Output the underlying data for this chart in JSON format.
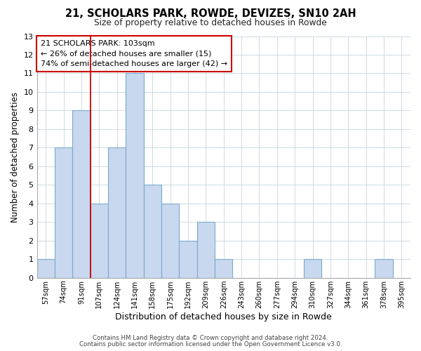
{
  "title": "21, SCHOLARS PARK, ROWDE, DEVIZES, SN10 2AH",
  "subtitle": "Size of property relative to detached houses in Rowde",
  "xlabel": "Distribution of detached houses by size in Rowde",
  "ylabel": "Number of detached properties",
  "bar_labels": [
    "57sqm",
    "74sqm",
    "91sqm",
    "107sqm",
    "124sqm",
    "141sqm",
    "158sqm",
    "175sqm",
    "192sqm",
    "209sqm",
    "226sqm",
    "243sqm",
    "260sqm",
    "277sqm",
    "294sqm",
    "310sqm",
    "327sqm",
    "344sqm",
    "361sqm",
    "378sqm",
    "395sqm"
  ],
  "bar_values": [
    1,
    7,
    9,
    4,
    7,
    11,
    5,
    4,
    2,
    3,
    1,
    0,
    0,
    0,
    0,
    1,
    0,
    0,
    0,
    1,
    0
  ],
  "bar_color": "#c8d8ee",
  "bar_edgecolor": "#7aaace",
  "ylim": [
    0,
    13
  ],
  "yticks": [
    0,
    1,
    2,
    3,
    4,
    5,
    6,
    7,
    8,
    9,
    10,
    11,
    12,
    13
  ],
  "vline_x": 2.5,
  "vline_color": "#cc0000",
  "annotation_title": "21 SCHOLARS PARK: 103sqm",
  "annotation_line1": "← 26% of detached houses are smaller (15)",
  "annotation_line2": "74% of semi-detached houses are larger (42) →",
  "annotation_box_edgecolor": "#cc0000",
  "footer1": "Contains HM Land Registry data © Crown copyright and database right 2024.",
  "footer2": "Contains public sector information licensed under the Open Government Licence v3.0.",
  "plot_bg_color": "#ffffff",
  "fig_bg_color": "#ffffff",
  "grid_color": "#c8d4de"
}
